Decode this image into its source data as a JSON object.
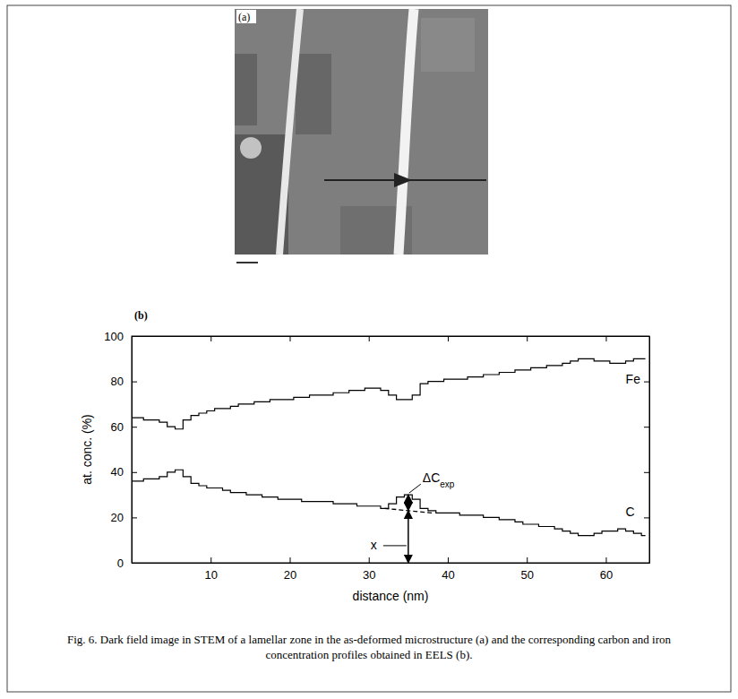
{
  "figure": {
    "panel_a_label": "(a)",
    "panel_b_label": "(b)",
    "caption": "Fig. 6. Dark field image in STEM of a lamellar zone in the as-deformed microstructure (a) and the corresponding carbon and iron concentration profiles obtained in EELS (b)."
  },
  "chart_data": {
    "type": "line",
    "x_label": "distance (nm)",
    "y_label": "at. conc. (%)",
    "x": [
      0,
      1,
      2,
      3,
      4,
      5,
      6,
      7,
      8,
      9,
      10,
      11,
      12,
      13,
      14,
      15,
      16,
      17,
      18,
      19,
      20,
      21,
      22,
      23,
      24,
      25,
      26,
      27,
      28,
      29,
      30,
      31,
      32,
      33,
      34,
      35,
      36,
      37,
      38,
      39,
      40,
      41,
      42,
      43,
      44,
      45,
      46,
      47,
      48,
      49,
      50,
      51,
      52,
      53,
      54,
      55,
      56,
      57,
      58,
      59,
      60,
      61,
      62,
      63,
      64,
      65
    ],
    "series": [
      {
        "name": "Fe",
        "color": "#000000",
        "line_style": "solid",
        "values": [
          64,
          64,
          63,
          63,
          62,
          60,
          59,
          63,
          65,
          66,
          67,
          68,
          68,
          69,
          70,
          70,
          71,
          71,
          72,
          72,
          72,
          73,
          73,
          74,
          74,
          74,
          75,
          75,
          76,
          76,
          77,
          77,
          76,
          74,
          72,
          72,
          74,
          79,
          80,
          80,
          81,
          81,
          81,
          82,
          82,
          83,
          83,
          84,
          84,
          85,
          85,
          86,
          86,
          87,
          87,
          88,
          89,
          90,
          90,
          89,
          89,
          88,
          88,
          89,
          90,
          90
        ]
      },
      {
        "name": "C",
        "color": "#000000",
        "line_style": "solid",
        "values": [
          36,
          36,
          37,
          37,
          38,
          40,
          41,
          38,
          35,
          34,
          33,
          33,
          32,
          31,
          31,
          30,
          30,
          29,
          29,
          28,
          28,
          28,
          27,
          27,
          27,
          27,
          26,
          26,
          26,
          25,
          25,
          25,
          24,
          26,
          29,
          30,
          28,
          24,
          23,
          22,
          22,
          22,
          21,
          21,
          21,
          20,
          20,
          19,
          19,
          18,
          17,
          17,
          16,
          16,
          15,
          14,
          13,
          12,
          12,
          13,
          14,
          14,
          15,
          14,
          13,
          12
        ]
      }
    ],
    "annotations": [
      {
        "text": "ΔC",
        "subscript": "exp",
        "x": 35,
        "from": 23,
        "to": 30,
        "baseline_x": [
          32,
          38
        ],
        "baseline_values": [
          24,
          22
        ]
      },
      {
        "text": "x",
        "x": 35,
        "from": 0,
        "to": 23
      }
    ],
    "xlim": [
      0,
      65.5
    ],
    "xticks": [
      10,
      20,
      30,
      40,
      50,
      60
    ],
    "ylim": [
      0,
      100
    ],
    "yticks": [
      0,
      20,
      40,
      60,
      80,
      100
    ],
    "grid": false
  }
}
